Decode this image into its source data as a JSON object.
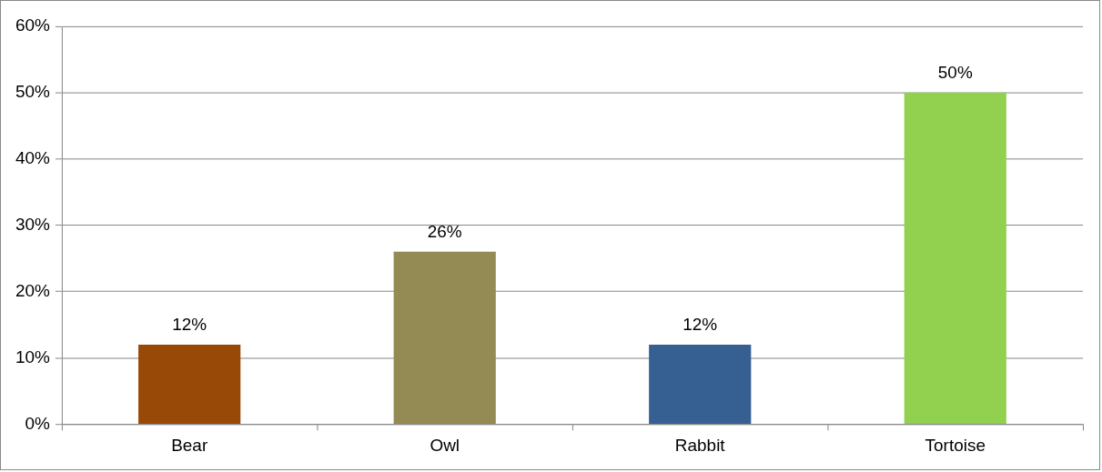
{
  "chart_data": {
    "type": "bar",
    "categories": [
      "Bear",
      "Owl",
      "Rabbit",
      "Tortoise"
    ],
    "values": [
      12,
      26,
      12,
      50
    ],
    "colors": [
      "#984807",
      "#948a54",
      "#376092",
      "#92d050"
    ],
    "value_labels": [
      "12%",
      "26%",
      "12%",
      "50%"
    ],
    "ylim": [
      0,
      60
    ],
    "yticks": [
      {
        "value": 0,
        "label": "0%"
      },
      {
        "value": 10,
        "label": "10%"
      },
      {
        "value": 20,
        "label": "20%"
      },
      {
        "value": 30,
        "label": "30%"
      },
      {
        "value": 40,
        "label": "40%"
      },
      {
        "value": 50,
        "label": "50%"
      },
      {
        "value": 60,
        "label": "60%"
      }
    ],
    "grid": "y",
    "legend": false
  }
}
